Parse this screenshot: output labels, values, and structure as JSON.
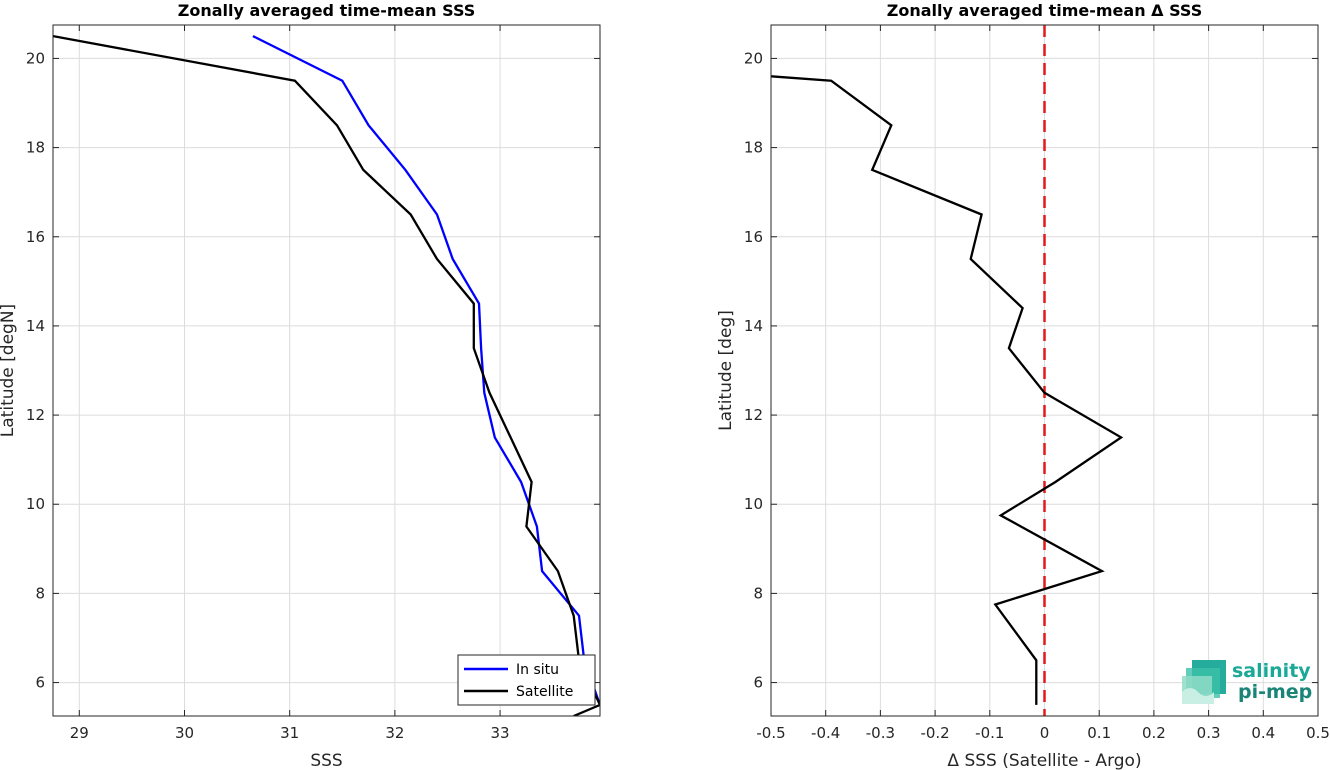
{
  "chart_data": [
    {
      "type": "line",
      "title": "Zonally averaged time-mean SSS",
      "xlabel": "SSS",
      "ylabel": "Latitude [degN]",
      "xlim": [
        28.75,
        33.95
      ],
      "ylim": [
        5.25,
        20.75
      ],
      "xticks": [
        29,
        30,
        31,
        32,
        33
      ],
      "yticks": [
        6,
        8,
        10,
        12,
        14,
        16,
        18,
        20
      ],
      "grid": true,
      "legend": "bottom-right",
      "series": [
        {
          "name": "In situ",
          "color": "#0000ff",
          "points": [
            [
              30.65,
              20.5
            ],
            [
              31.5,
              19.5
            ],
            [
              31.75,
              18.5
            ],
            [
              32.1,
              17.5
            ],
            [
              32.4,
              16.5
            ],
            [
              32.55,
              15.5
            ],
            [
              32.8,
              14.5
            ],
            [
              32.82,
              13.5
            ],
            [
              32.85,
              12.5
            ],
            [
              32.95,
              11.5
            ],
            [
              33.2,
              10.5
            ],
            [
              33.35,
              9.5
            ],
            [
              33.4,
              8.5
            ],
            [
              33.75,
              7.5
            ],
            [
              33.8,
              6.5
            ],
            [
              33.95,
              5.5
            ]
          ]
        },
        {
          "name": "Satellite",
          "color": "#000000",
          "points": [
            [
              28.75,
              20.5
            ],
            [
              31.05,
              19.5
            ],
            [
              31.45,
              18.5
            ],
            [
              31.7,
              17.5
            ],
            [
              32.15,
              16.5
            ],
            [
              32.4,
              15.5
            ],
            [
              32.75,
              14.5
            ],
            [
              32.75,
              13.5
            ],
            [
              32.9,
              12.5
            ],
            [
              33.1,
              11.5
            ],
            [
              33.3,
              10.5
            ],
            [
              33.25,
              9.5
            ],
            [
              33.55,
              8.5
            ],
            [
              33.7,
              7.5
            ],
            [
              33.75,
              6.5
            ],
            [
              33.95,
              5.5
            ],
            [
              33.7,
              5.25
            ]
          ]
        }
      ]
    },
    {
      "type": "line",
      "title": "Zonally averaged time-mean Δ SSS",
      "xlabel": "Δ SSS (Satellite - Argo)",
      "ylabel": "Latitude [deg]",
      "xlim": [
        -0.5,
        0.5
      ],
      "ylim": [
        5.25,
        20.75
      ],
      "xticks": [
        -0.5,
        -0.4,
        -0.3,
        -0.2,
        -0.1,
        0,
        0.1,
        0.2,
        0.3,
        0.4,
        0.5
      ],
      "yticks": [
        6,
        8,
        10,
        12,
        14,
        16,
        18,
        20
      ],
      "grid": true,
      "reference_line": {
        "x": 0,
        "color": "#e31a1c",
        "style": "dashed"
      },
      "series": [
        {
          "color": "#000000",
          "points": [
            [
              -0.5,
              19.6
            ],
            [
              -0.39,
              19.5
            ],
            [
              -0.28,
              18.5
            ],
            [
              -0.315,
              17.5
            ],
            [
              -0.115,
              16.5
            ],
            [
              -0.135,
              15.5
            ],
            [
              -0.04,
              14.4
            ],
            [
              -0.065,
              13.5
            ],
            [
              0,
              12.5
            ],
            [
              0.14,
              11.5
            ],
            [
              0.02,
              10.5
            ],
            [
              -0.08,
              9.75
            ],
            [
              0.105,
              8.5
            ],
            [
              -0.09,
              7.75
            ],
            [
              -0.015,
              6.5
            ],
            [
              -0.015,
              5.5
            ]
          ]
        }
      ]
    }
  ],
  "logo": {
    "line1": "salinity",
    "line2": "pi-mep",
    "color": "#1aa897"
  }
}
